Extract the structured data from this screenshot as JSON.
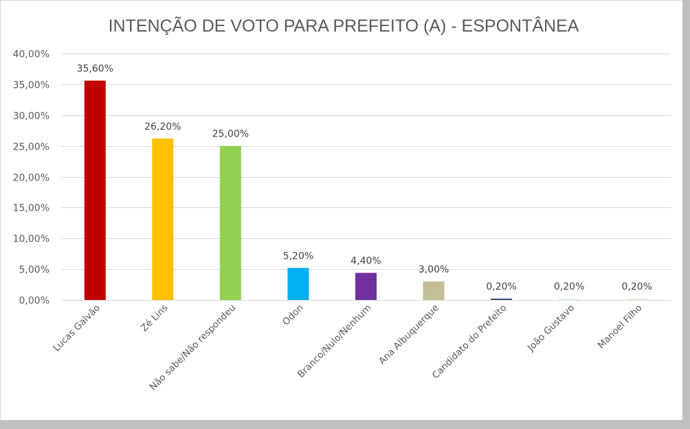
{
  "chart_data": {
    "type": "bar",
    "title": "INTENÇÃO DE VOTO PARA PREFEITO (A) - ESPONTÂNEA",
    "xlabel": "",
    "ylabel": "",
    "ylim": [
      0,
      40
    ],
    "y_ticks": [
      0,
      5,
      10,
      15,
      20,
      25,
      30,
      35,
      40
    ],
    "y_tick_labels": [
      "0,00%",
      "5,00%",
      "10,00%",
      "15,00%",
      "20,00%",
      "25,00%",
      "30,00%",
      "35,00%",
      "40,00%"
    ],
    "grid": true,
    "legend": "none",
    "categories": [
      "Lucas Galvão",
      "Zé Lins",
      "Não sabe/Não respondeu",
      "Odon",
      "Branco/Nulo/Nenhum",
      "Ana Albuquerque",
      "Candidato do Prefeito",
      "João Gustavo",
      "Manoel Filho"
    ],
    "values": [
      35.6,
      26.2,
      25.0,
      5.2,
      4.4,
      3.0,
      0.2,
      0.2,
      0.2
    ],
    "data_labels": [
      "35,60%",
      "26,20%",
      "25,00%",
      "5,20%",
      "4,40%",
      "3,00%",
      "0,20%",
      "0,20%",
      "0,20%"
    ],
    "colors": [
      "#c00000",
      "#ffc000",
      "#92d050",
      "#00b0f0",
      "#7030a0",
      "#c4bd97",
      "#1f3864",
      "#ddebf7",
      "#fce4d6"
    ]
  }
}
